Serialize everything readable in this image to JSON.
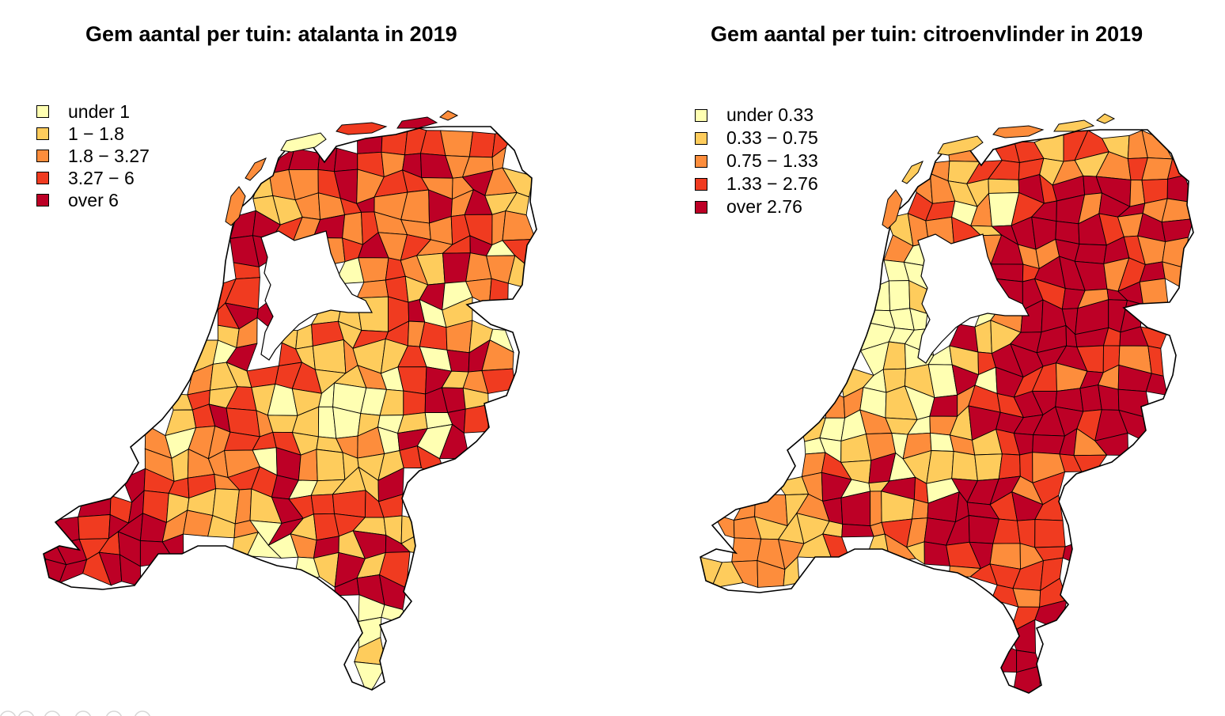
{
  "maps": [
    {
      "title": "Gem aantal per tuin: atalanta in 2019",
      "legend": [
        {
          "label": "under 1",
          "color": "#ffffb2"
        },
        {
          "label": "1 − 1.8",
          "color": "#fecc5c"
        },
        {
          "label": "1.8 − 3.27",
          "color": "#fd8d3c"
        },
        {
          "label": "3.27 − 6",
          "color": "#f03b20"
        },
        {
          "label": "over 6",
          "color": "#bd0026"
        }
      ]
    },
    {
      "title": "Gem aantal per tuin: citroenvlinder in 2019",
      "legend": [
        {
          "label": "under 0.33",
          "color": "#ffffb2"
        },
        {
          "label": "0.33 − 0.75",
          "color": "#fecc5c"
        },
        {
          "label": "0.75 − 1.33",
          "color": "#fd8d3c"
        },
        {
          "label": "1.33 − 2.76",
          "color": "#f03b20"
        },
        {
          "label": "over 2.76",
          "color": "#bd0026"
        }
      ]
    }
  ]
}
